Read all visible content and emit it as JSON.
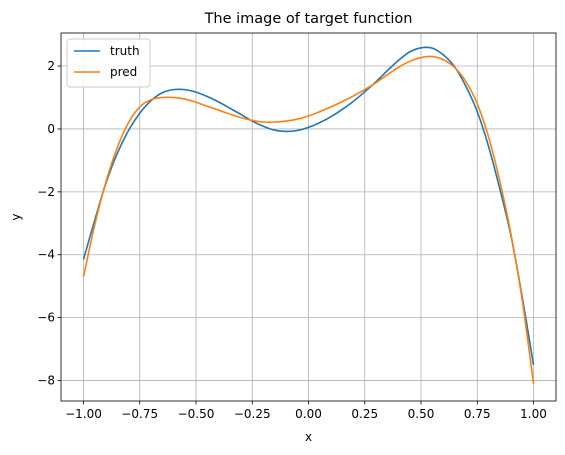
{
  "chart_data": {
    "type": "line",
    "title": "The image of target function",
    "xlabel": "x",
    "ylabel": "y",
    "xlim": [
      -1.1,
      1.1
    ],
    "ylim": [
      -8.65,
      3.05
    ],
    "grid": true,
    "legend_position": "top-left",
    "x_ticks": [
      -1.0,
      -0.75,
      -0.5,
      -0.25,
      0.0,
      0.25,
      0.5,
      0.75,
      1.0
    ],
    "x_tick_labels": [
      "−1.00",
      "−0.75",
      "−0.50",
      "−0.25",
      "0.00",
      "0.25",
      "0.50",
      "0.75",
      "1.00"
    ],
    "y_ticks": [
      2,
      0,
      -2,
      -4,
      -6,
      -8
    ],
    "y_tick_labels": [
      "2",
      "0",
      "−2",
      "−4",
      "−6",
      "−8"
    ],
    "series": [
      {
        "name": "truth",
        "color": "#1f77b4",
        "x": [
          -1.0,
          -0.95,
          -0.9,
          -0.85,
          -0.8,
          -0.75,
          -0.7,
          -0.65,
          -0.6,
          -0.55,
          -0.5,
          -0.45,
          -0.4,
          -0.35,
          -0.3,
          -0.25,
          -0.2,
          -0.15,
          -0.1,
          -0.05,
          0.0,
          0.05,
          0.1,
          0.15,
          0.2,
          0.25,
          0.3,
          0.35,
          0.4,
          0.45,
          0.5,
          0.55,
          0.6,
          0.65,
          0.7,
          0.75,
          0.8,
          0.85,
          0.9,
          0.95,
          1.0
        ],
        "y": [
          -4.15,
          -2.9,
          -1.72,
          -0.78,
          -0.05,
          0.5,
          0.9,
          1.15,
          1.25,
          1.25,
          1.17,
          1.03,
          0.86,
          0.66,
          0.46,
          0.25,
          0.08,
          -0.04,
          -0.08,
          -0.05,
          0.05,
          0.2,
          0.39,
          0.62,
          0.88,
          1.18,
          1.5,
          1.85,
          2.18,
          2.45,
          2.58,
          2.57,
          2.35,
          1.97,
          1.35,
          0.55,
          -0.55,
          -1.9,
          -3.4,
          -5.35,
          -7.5
        ]
      },
      {
        "name": "pred",
        "color": "#ff7f0e",
        "x": [
          -1.0,
          -0.95,
          -0.9,
          -0.85,
          -0.8,
          -0.75,
          -0.7,
          -0.65,
          -0.6,
          -0.55,
          -0.5,
          -0.45,
          -0.4,
          -0.35,
          -0.3,
          -0.25,
          -0.2,
          -0.15,
          -0.1,
          -0.05,
          0.0,
          0.05,
          0.1,
          0.15,
          0.2,
          0.25,
          0.3,
          0.35,
          0.4,
          0.45,
          0.5,
          0.55,
          0.6,
          0.65,
          0.7,
          0.75,
          0.8,
          0.85,
          0.9,
          0.95,
          1.0
        ],
        "y": [
          -4.7,
          -3.05,
          -1.68,
          -0.6,
          0.2,
          0.7,
          0.93,
          1.0,
          1.0,
          0.95,
          0.85,
          0.72,
          0.6,
          0.47,
          0.36,
          0.27,
          0.22,
          0.22,
          0.25,
          0.31,
          0.41,
          0.55,
          0.7,
          0.87,
          1.05,
          1.25,
          1.47,
          1.72,
          1.96,
          2.15,
          2.27,
          2.3,
          2.2,
          1.95,
          1.5,
          0.8,
          -0.25,
          -1.65,
          -3.35,
          -5.45,
          -8.1
        ]
      }
    ]
  }
}
